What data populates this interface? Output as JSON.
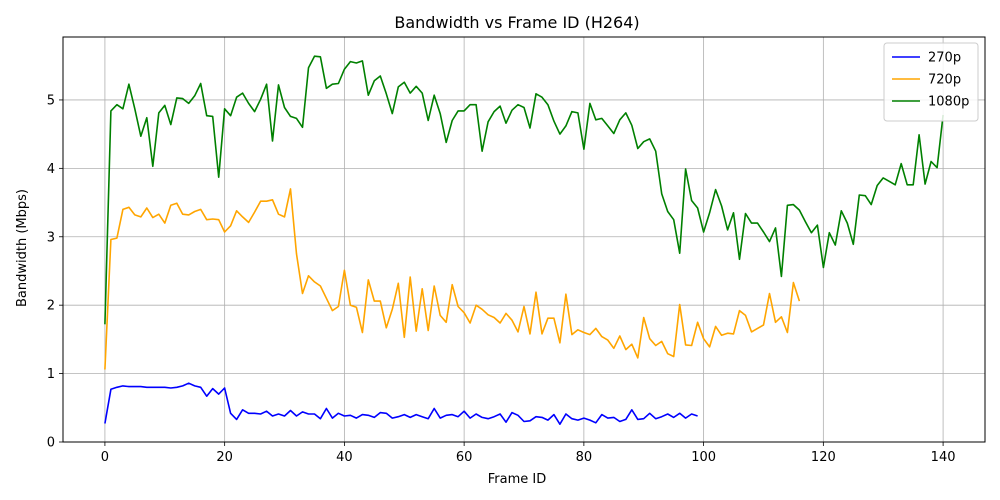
{
  "chart_data": {
    "type": "line",
    "title": "Bandwidth vs Frame ID (H264)",
    "xlabel": "Frame ID",
    "ylabel": "Bandwidth (Mbps)",
    "xlim": [
      -7,
      147
    ],
    "ylim": [
      0,
      5.92
    ],
    "xticks": [
      0,
      20,
      40,
      60,
      80,
      100,
      120,
      140
    ],
    "yticks": [
      0,
      1,
      2,
      3,
      4,
      5
    ],
    "grid": true,
    "legend_position": "top-right",
    "series": [
      {
        "name": "270p",
        "color": "#0000ff",
        "values": [
          0.27,
          0.77,
          0.8,
          0.82,
          0.81,
          0.81,
          0.81,
          0.8,
          0.8,
          0.8,
          0.8,
          0.79,
          0.8,
          0.82,
          0.86,
          0.82,
          0.8,
          0.67,
          0.78,
          0.7,
          0.79,
          0.42,
          0.33,
          0.47,
          0.42,
          0.42,
          0.41,
          0.45,
          0.38,
          0.41,
          0.38,
          0.46,
          0.38,
          0.44,
          0.41,
          0.41,
          0.34,
          0.49,
          0.35,
          0.42,
          0.38,
          0.39,
          0.35,
          0.4,
          0.39,
          0.36,
          0.43,
          0.42,
          0.35,
          0.37,
          0.4,
          0.36,
          0.4,
          0.37,
          0.34,
          0.49,
          0.35,
          0.39,
          0.4,
          0.37,
          0.45,
          0.35,
          0.41,
          0.36,
          0.34,
          0.37,
          0.41,
          0.29,
          0.43,
          0.39,
          0.3,
          0.31,
          0.37,
          0.36,
          0.32,
          0.4,
          0.26,
          0.41,
          0.34,
          0.32,
          0.35,
          0.32,
          0.28,
          0.4,
          0.35,
          0.36,
          0.3,
          0.33,
          0.47,
          0.33,
          0.34,
          0.42,
          0.34,
          0.37,
          0.41,
          0.36,
          0.42,
          0.35,
          0.41,
          0.38
        ]
      },
      {
        "name": "720p",
        "color": "#ffa500",
        "values": [
          1.06,
          2.96,
          2.98,
          3.4,
          3.43,
          3.32,
          3.29,
          3.42,
          3.28,
          3.33,
          3.2,
          3.46,
          3.49,
          3.33,
          3.32,
          3.37,
          3.4,
          3.25,
          3.26,
          3.25,
          3.07,
          3.16,
          3.38,
          3.29,
          3.21,
          3.36,
          3.52,
          3.52,
          3.54,
          3.33,
          3.29,
          3.7,
          2.75,
          2.17,
          2.43,
          2.34,
          2.28,
          2.1,
          1.92,
          1.98,
          2.51,
          2.0,
          1.97,
          1.6,
          2.37,
          2.06,
          2.06,
          1.67,
          1.94,
          2.32,
          1.53,
          2.41,
          1.62,
          2.24,
          1.63,
          2.28,
          1.85,
          1.75,
          2.3,
          1.98,
          1.89,
          1.74,
          2.0,
          1.94,
          1.86,
          1.82,
          1.74,
          1.88,
          1.78,
          1.61,
          1.98,
          1.58,
          2.19,
          1.58,
          1.81,
          1.81,
          1.45,
          2.16,
          1.57,
          1.64,
          1.6,
          1.57,
          1.66,
          1.54,
          1.49,
          1.37,
          1.55,
          1.35,
          1.43,
          1.23,
          1.82,
          1.51,
          1.41,
          1.47,
          1.29,
          1.25,
          2.01,
          1.42,
          1.41,
          1.75,
          1.51,
          1.39,
          1.69,
          1.56,
          1.59,
          1.58,
          1.92,
          1.85,
          1.61,
          1.66,
          1.71,
          2.17,
          1.75,
          1.83,
          1.6,
          2.33,
          2.06
        ]
      },
      {
        "name": "1080p",
        "color": "#008000",
        "values": [
          1.72,
          4.84,
          4.93,
          4.87,
          5.23,
          4.87,
          4.47,
          4.74,
          4.03,
          4.81,
          4.92,
          4.64,
          5.03,
          5.02,
          4.95,
          5.06,
          5.24,
          4.77,
          4.76,
          3.87,
          4.87,
          4.77,
          5.04,
          5.1,
          4.95,
          4.83,
          5.01,
          5.23,
          4.4,
          5.22,
          4.89,
          4.76,
          4.73,
          4.6,
          5.47,
          5.64,
          5.63,
          5.17,
          5.23,
          5.24,
          5.45,
          5.56,
          5.54,
          5.57,
          5.07,
          5.28,
          5.35,
          5.09,
          4.8,
          5.19,
          5.26,
          5.1,
          5.2,
          5.1,
          4.7,
          5.07,
          4.8,
          4.38,
          4.7,
          4.84,
          4.84,
          4.93,
          4.93,
          4.25,
          4.68,
          4.83,
          4.91,
          4.66,
          4.85,
          4.93,
          4.89,
          4.59,
          5.09,
          5.04,
          4.93,
          4.69,
          4.5,
          4.62,
          4.83,
          4.81,
          4.28,
          4.95,
          4.71,
          4.73,
          4.62,
          4.51,
          4.71,
          4.81,
          4.63,
          4.29,
          4.39,
          4.43,
          4.25,
          3.63,
          3.37,
          3.25,
          2.76,
          3.99,
          3.53,
          3.42,
          3.07,
          3.35,
          3.69,
          3.45,
          3.1,
          3.35,
          2.67,
          3.34,
          3.2,
          3.2,
          3.07,
          2.93,
          3.13,
          2.42,
          3.46,
          3.47,
          3.39,
          3.22,
          3.06,
          3.17,
          2.55,
          3.06,
          2.88,
          3.38,
          3.2,
          2.89,
          3.61,
          3.6,
          3.47,
          3.75,
          3.86,
          3.81,
          3.76,
          4.07,
          3.76,
          3.76,
          4.49,
          3.77,
          4.1,
          4.01,
          4.78
        ]
      }
    ]
  }
}
